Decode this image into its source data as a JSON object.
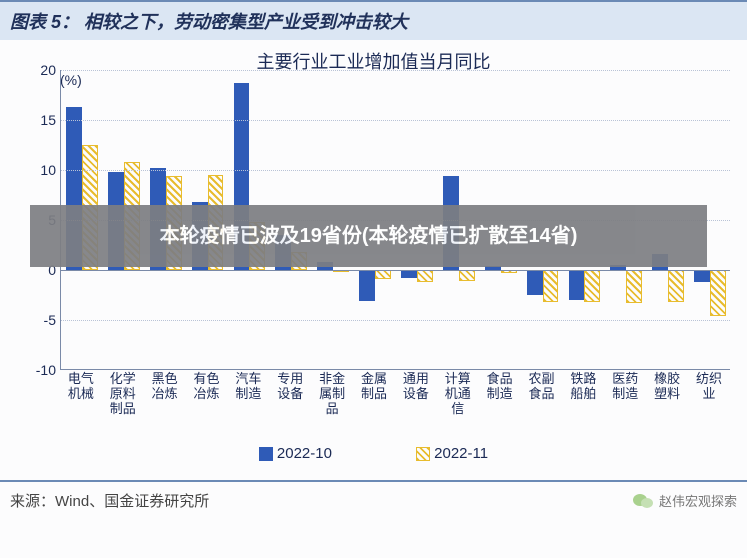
{
  "header": {
    "label": "图表 5：",
    "title": "相较之下，劳动密集型产业受到冲击较大"
  },
  "chart": {
    "type": "bar",
    "title": "主要行业工业增加值当月同比",
    "y_unit": "(%)",
    "ylim": [
      -10,
      20
    ],
    "ytick_step": 5,
    "yticks": [
      -10,
      -5,
      0,
      5,
      10,
      15,
      20
    ],
    "grid_color": "#b9c3d6",
    "axis_color": "#7a8aa8",
    "background_color": "#fcfcfd",
    "categories": [
      "电气\n机械",
      "化学\n原料\n制品",
      "黑色\n冶炼",
      "有色\n冶炼",
      "汽车\n制造",
      "专用\n设备",
      "非金\n属制\n品",
      "金属\n制品",
      "通用\n设备",
      "计算\n机通\n信",
      "食品\n制造",
      "农副\n食品",
      "铁路\n船舶",
      "医药\n制造",
      "橡胶\n塑料",
      "纺织\n业"
    ],
    "series": [
      {
        "name": "2022-10",
        "color": "#2f5bb7",
        "style": "solid",
        "values": [
          16.3,
          9.8,
          10.2,
          6.8,
          18.7,
          3.5,
          0.8,
          -3.1,
          -0.8,
          9.4,
          0.4,
          -2.5,
          -3.0,
          0.5,
          1.6,
          -1.2
        ]
      },
      {
        "name": "2022-11",
        "color": "#e8bc2e",
        "style": "hatch",
        "values": [
          12.5,
          10.8,
          9.4,
          9.5,
          4.8,
          1.8,
          0.0,
          -0.9,
          -1.2,
          -1.1,
          -0.3,
          -3.2,
          -3.2,
          -3.3,
          -3.2,
          -4.6
        ]
      }
    ],
    "bar_width_ratio": 0.38,
    "label_fontsize": 13,
    "title_fontsize": 18
  },
  "legend": {
    "items": [
      "2022-10",
      "2022-11"
    ]
  },
  "footer": {
    "source_label": "来源：",
    "source_text": "Wind、国金证券研究所",
    "wechat": "赵伟宏观探索"
  },
  "overlay": {
    "text": "本轮疫情已波及19省份(本轮疫情已扩散至14省)"
  }
}
